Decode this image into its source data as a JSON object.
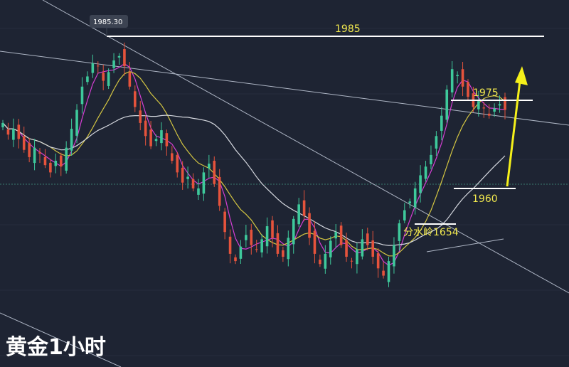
{
  "chart_data": {
    "type": "candlestick",
    "title": "黄金1小时",
    "price_axis": {
      "ylim": [
        1560,
        2010
      ]
    },
    "levels": [
      {
        "label": "1985",
        "price": 1985
      },
      {
        "label": "1975",
        "price": 1975
      },
      {
        "label": "1960",
        "price": 1960
      },
      {
        "label": "分水岭1654",
        "price": 1654
      }
    ],
    "callout": {
      "label": "1985.30",
      "value": 1985.3
    },
    "closes": [
      1880,
      1864,
      1872,
      1858,
      1843,
      1833,
      1846,
      1838,
      1822,
      1812,
      1828,
      1820,
      1846,
      1872,
      1898,
      1930,
      1944,
      1962,
      1958,
      1938,
      1950,
      1966,
      1972,
      1958,
      1930,
      1902,
      1880,
      1862,
      1848,
      1858,
      1870,
      1848,
      1828,
      1812,
      1798,
      1806,
      1790,
      1790,
      1812,
      1824,
      1796,
      1766,
      1730,
      1700,
      1690,
      1710,
      1726,
      1712,
      1706,
      1720,
      1738,
      1722,
      1700,
      1696,
      1722,
      1748,
      1768,
      1752,
      1722,
      1700,
      1686,
      1700,
      1718,
      1730,
      1712,
      1696,
      1690,
      1706,
      1720,
      1712,
      1696,
      1680,
      1670,
      1690,
      1712,
      1742,
      1760,
      1772,
      1790,
      1808,
      1820,
      1836,
      1862,
      1890,
      1926,
      1954,
      1946,
      1930,
      1916,
      1902,
      1910,
      1900,
      1890,
      1900,
      1906,
      1898
    ],
    "colors": {
      "up": "#3ec99b",
      "down": "#e5533c",
      "background": "#1e2433"
    }
  }
}
